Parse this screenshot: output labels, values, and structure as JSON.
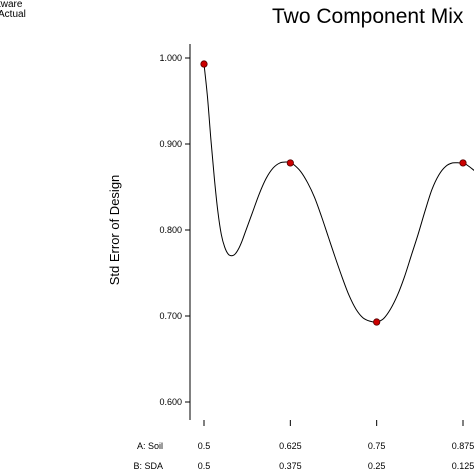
{
  "corner_text": [
    "tware",
    "Actual"
  ],
  "chart_data": {
    "type": "line",
    "title": "Two Component Mix",
    "xlabel": "",
    "ylabel": "Std Error of Design",
    "ylim": [
      0.6,
      1.0
    ],
    "yticks": [
      "0.600",
      "0.700",
      "0.800",
      "0.900",
      "1.000"
    ],
    "ytick_values": [
      0.6,
      0.7,
      0.8,
      0.9,
      1.0
    ],
    "x_axis_rows": [
      {
        "label": "A: Soil",
        "ticks": [
          "0.5",
          "0.625",
          "0.75",
          "0.875"
        ]
      },
      {
        "label": "B: SDA",
        "ticks": [
          "0.5",
          "0.375",
          "0.25",
          "0.125"
        ]
      }
    ],
    "x_tick_values": [
      0.5,
      0.625,
      0.75,
      0.875
    ],
    "curve": {
      "x": [
        0.5,
        0.505,
        0.51,
        0.515,
        0.52,
        0.525,
        0.53,
        0.535,
        0.54,
        0.545,
        0.55,
        0.555,
        0.56,
        0.57,
        0.58,
        0.59,
        0.6,
        0.61,
        0.62,
        0.625,
        0.63,
        0.64,
        0.65,
        0.66,
        0.67,
        0.68,
        0.69,
        0.7,
        0.71,
        0.72,
        0.73,
        0.74,
        0.75,
        0.76,
        0.77,
        0.78,
        0.79,
        0.8,
        0.81,
        0.82,
        0.83,
        0.84,
        0.85,
        0.86,
        0.87,
        0.875,
        0.88,
        0.89,
        0.9,
        0.91
      ],
      "y": [
        0.993,
        0.955,
        0.905,
        0.86,
        0.822,
        0.795,
        0.78,
        0.772,
        0.77,
        0.772,
        0.778,
        0.787,
        0.798,
        0.82,
        0.842,
        0.86,
        0.872,
        0.878,
        0.879,
        0.878,
        0.876,
        0.868,
        0.855,
        0.838,
        0.816,
        0.792,
        0.768,
        0.745,
        0.724,
        0.708,
        0.698,
        0.694,
        0.693,
        0.697,
        0.708,
        0.724,
        0.745,
        0.77,
        0.795,
        0.822,
        0.847,
        0.864,
        0.874,
        0.878,
        0.878,
        0.878,
        0.876,
        0.87,
        0.863,
        0.855
      ]
    },
    "design_points": [
      {
        "x": 0.5,
        "y": 0.993
      },
      {
        "x": 0.625,
        "y": 0.878
      },
      {
        "x": 0.75,
        "y": 0.693
      },
      {
        "x": 0.875,
        "y": 0.878
      }
    ],
    "grid": false,
    "colors": {
      "line": "#000000",
      "point": "#cc0000",
      "axis": "#000000"
    }
  }
}
